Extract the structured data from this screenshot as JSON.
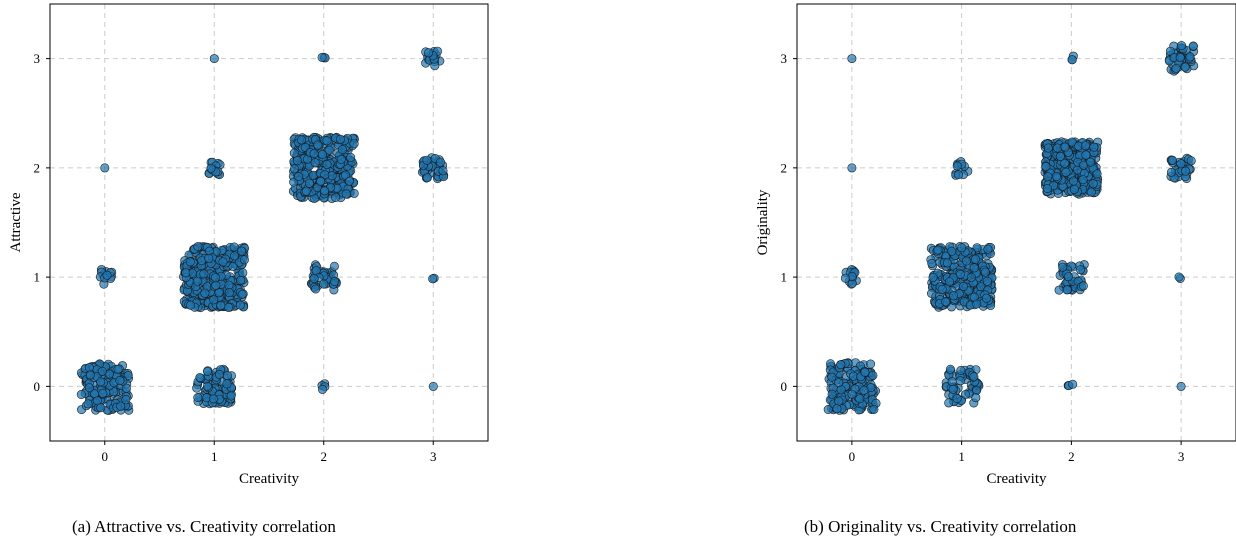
{
  "captions": {
    "a": "(a) Attractive vs. Creativity correlation",
    "b": "(b) Originality vs. Creativity correlation"
  },
  "colors": {
    "point": "#1f77b4",
    "edge": "#1a1a1a",
    "grid": "#cccccc"
  },
  "chart_data": [
    {
      "type": "scatter",
      "title": "",
      "xlabel": "Creativity",
      "ylabel": "Attractive",
      "xlim": [
        -0.5,
        3.5
      ],
      "ylim": [
        -0.5,
        3.5
      ],
      "xticks": [
        0,
        1,
        2,
        3
      ],
      "yticks": [
        0,
        1,
        2,
        3
      ],
      "grid": true,
      "jitter": 0.25,
      "clusters": [
        {
          "x": 0,
          "y": 0,
          "n": 160,
          "spread": 0.22
        },
        {
          "x": 0,
          "y": 1,
          "n": 12,
          "spread": 0.07
        },
        {
          "x": 0,
          "y": 2,
          "n": 1,
          "spread": 0
        },
        {
          "x": 1,
          "y": 0,
          "n": 90,
          "spread": 0.16
        },
        {
          "x": 1,
          "y": 1,
          "n": 350,
          "spread": 0.28
        },
        {
          "x": 1,
          "y": 2,
          "n": 14,
          "spread": 0.07
        },
        {
          "x": 1,
          "y": 3,
          "n": 1,
          "spread": 0
        },
        {
          "x": 2,
          "y": 0,
          "n": 4,
          "spread": 0.03
        },
        {
          "x": 2,
          "y": 1,
          "n": 45,
          "spread": 0.12
        },
        {
          "x": 2,
          "y": 2,
          "n": 350,
          "spread": 0.28
        },
        {
          "x": 2,
          "y": 3,
          "n": 3,
          "spread": 0.02
        },
        {
          "x": 3,
          "y": 0,
          "n": 1,
          "spread": 0
        },
        {
          "x": 3,
          "y": 1,
          "n": 2,
          "spread": 0.02
        },
        {
          "x": 3,
          "y": 2,
          "n": 40,
          "spread": 0.1
        },
        {
          "x": 3,
          "y": 3,
          "n": 18,
          "spread": 0.07
        }
      ]
    },
    {
      "type": "scatter",
      "title": "",
      "xlabel": "Creativity",
      "ylabel": "Originality",
      "xlim": [
        -0.5,
        3.5
      ],
      "ylim": [
        -0.5,
        3.5
      ],
      "xticks": [
        0,
        1,
        2,
        3
      ],
      "yticks": [
        0,
        1,
        2,
        3
      ],
      "grid": true,
      "jitter": 0.25,
      "clusters": [
        {
          "x": 0,
          "y": 0,
          "n": 170,
          "spread": 0.22
        },
        {
          "x": 0,
          "y": 1,
          "n": 14,
          "spread": 0.07
        },
        {
          "x": 0,
          "y": 2,
          "n": 1,
          "spread": 0
        },
        {
          "x": 0,
          "y": 3,
          "n": 1,
          "spread": 0
        },
        {
          "x": 1,
          "y": 0,
          "n": 60,
          "spread": 0.16
        },
        {
          "x": 1,
          "y": 1,
          "n": 320,
          "spread": 0.28
        },
        {
          "x": 1,
          "y": 2,
          "n": 12,
          "spread": 0.07
        },
        {
          "x": 2,
          "y": 0,
          "n": 3,
          "spread": 0.03
        },
        {
          "x": 2,
          "y": 1,
          "n": 45,
          "spread": 0.12
        },
        {
          "x": 2,
          "y": 2,
          "n": 360,
          "spread": 0.24
        },
        {
          "x": 2,
          "y": 3,
          "n": 3,
          "spread": 0.03
        },
        {
          "x": 3,
          "y": 0,
          "n": 1,
          "spread": 0
        },
        {
          "x": 3,
          "y": 1,
          "n": 2,
          "spread": 0.02
        },
        {
          "x": 3,
          "y": 2,
          "n": 30,
          "spread": 0.1
        },
        {
          "x": 3,
          "y": 3,
          "n": 45,
          "spread": 0.12
        }
      ]
    }
  ]
}
